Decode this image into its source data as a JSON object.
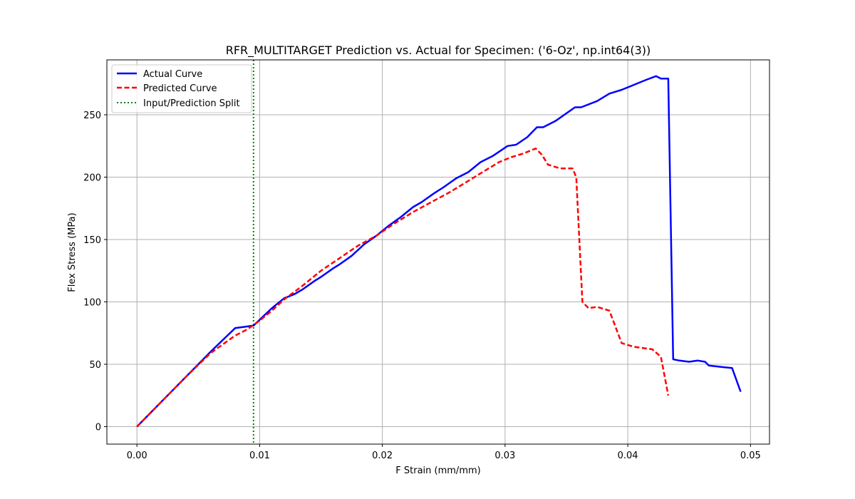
{
  "chart_data": {
    "type": "line",
    "title": "RFR_MULTITARGET Prediction vs. Actual for Specimen: ('6-Oz', np.int64(3))",
    "xlabel": "F Strain (mm/mm)",
    "ylabel": "Flex Stress (MPa)",
    "xlim": [
      -0.00245,
      0.05155
    ],
    "ylim": [
      -14.0,
      294.0
    ],
    "xticks": [
      0.0,
      0.01,
      0.02,
      0.03,
      0.04,
      0.05
    ],
    "xtick_labels": [
      "0.00",
      "0.01",
      "0.02",
      "0.03",
      "0.04",
      "0.05"
    ],
    "yticks": [
      0,
      50,
      100,
      150,
      200,
      250
    ],
    "ytick_labels": [
      "0",
      "50",
      "100",
      "150",
      "200",
      "250"
    ],
    "grid": true,
    "legend_position": "top-left",
    "split_x": 0.0095,
    "series": [
      {
        "name": "Actual Curve",
        "color": "#0000ff",
        "style": "solid",
        "x": [
          0.0,
          0.002,
          0.004,
          0.006,
          0.008,
          0.0095,
          0.011,
          0.012,
          0.0128,
          0.0135,
          0.0145,
          0.015,
          0.016,
          0.0165,
          0.0175,
          0.0185,
          0.0195,
          0.0205,
          0.0215,
          0.0225,
          0.0232,
          0.0242,
          0.025,
          0.026,
          0.027,
          0.028,
          0.029,
          0.0302,
          0.0309,
          0.0318,
          0.0326,
          0.0331,
          0.0341,
          0.0357,
          0.0362,
          0.0375,
          0.0385,
          0.0395,
          0.0405,
          0.0415,
          0.0423,
          0.0427,
          0.0433,
          0.0437,
          0.0442,
          0.045,
          0.0457,
          0.0463,
          0.0466,
          0.0475,
          0.0485,
          0.0492
        ],
        "y": [
          0,
          20,
          40,
          60,
          79,
          81,
          95,
          103,
          106,
          110,
          117,
          120,
          127,
          130,
          137,
          146,
          153,
          161,
          168,
          176,
          180,
          187,
          192,
          199,
          204,
          212,
          217,
          225,
          226,
          232,
          240,
          240,
          245,
          256,
          256,
          261,
          267,
          270,
          274,
          278,
          281,
          279,
          279,
          54,
          53,
          52,
          53,
          52,
          49,
          48,
          47,
          28
        ]
      },
      {
        "name": "Predicted Curve",
        "color": "#ff0000",
        "style": "dashed",
        "x": [
          0.0,
          0.002,
          0.004,
          0.006,
          0.008,
          0.009,
          0.01,
          0.011,
          0.012,
          0.0135,
          0.015,
          0.0165,
          0.018,
          0.0195,
          0.021,
          0.0225,
          0.024,
          0.0255,
          0.027,
          0.0285,
          0.0295,
          0.0305,
          0.0315,
          0.0325,
          0.033,
          0.0335,
          0.0345,
          0.0355,
          0.0358,
          0.0363,
          0.0368,
          0.0375,
          0.0385,
          0.0395,
          0.0405,
          0.042,
          0.0427,
          0.0433
        ],
        "y": [
          0,
          20,
          40,
          59,
          73,
          78,
          85,
          93,
          102,
          113,
          125,
          135,
          145,
          153,
          163,
          172,
          180,
          188,
          197,
          206,
          212,
          216,
          219,
          223,
          218,
          210,
          207,
          207,
          200,
          100,
          95,
          96,
          93,
          67,
          64,
          62,
          56,
          25
        ]
      },
      {
        "name": "Input/Prediction Split",
        "color": "#008000",
        "style": "dotted"
      }
    ]
  }
}
